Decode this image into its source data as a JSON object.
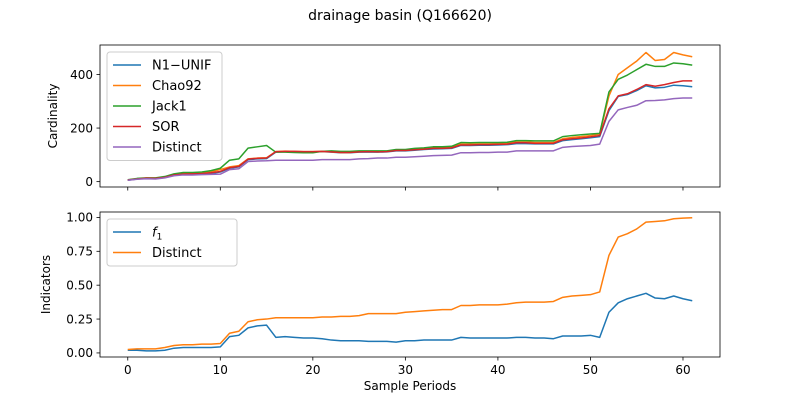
{
  "figure": {
    "title": "drainage basin (Q166620)"
  },
  "chart_data": [
    {
      "type": "line",
      "ylabel": "Cardinality",
      "xlabel": "",
      "xlim": [
        -3,
        64
      ],
      "ylim": [
        -20,
        510
      ],
      "xticks": [
        0,
        10,
        20,
        30,
        40,
        50,
        60
      ],
      "yticks": [
        0,
        200,
        400
      ],
      "show_xtick_labels": false,
      "grid": false,
      "legend_position": "upper-left",
      "x": [
        0,
        1,
        2,
        3,
        4,
        5,
        6,
        7,
        8,
        9,
        10,
        11,
        12,
        13,
        14,
        15,
        16,
        17,
        18,
        19,
        20,
        21,
        22,
        23,
        24,
        25,
        26,
        27,
        28,
        29,
        30,
        31,
        32,
        33,
        34,
        35,
        36,
        37,
        38,
        39,
        40,
        41,
        42,
        43,
        44,
        45,
        46,
        47,
        48,
        49,
        50,
        51,
        52,
        53,
        54,
        55,
        56,
        57,
        58,
        59,
        60,
        61
      ],
      "series": [
        {
          "name": "N1−UNIF",
          "color": "#1f77b4",
          "values": [
            5,
            10,
            12,
            11,
            15,
            24,
            27,
            28,
            29,
            31,
            36,
            50,
            55,
            82,
            85,
            86,
            110,
            112,
            112,
            111,
            111,
            112,
            110,
            108,
            108,
            110,
            110,
            110,
            111,
            115,
            115,
            117,
            120,
            122,
            123,
            124,
            135,
            135,
            136,
            136,
            137,
            138,
            142,
            142,
            141,
            141,
            141,
            153,
            157,
            160,
            164,
            168,
            265,
            318,
            325,
            340,
            358,
            350,
            352,
            360,
            358,
            354
          ]
        },
        {
          "name": "Chao92",
          "color": "#ff7f0e",
          "values": [
            6,
            11,
            13,
            13,
            17,
            27,
            31,
            32,
            33,
            37,
            45,
            55,
            60,
            85,
            88,
            89,
            112,
            114,
            113,
            112,
            112,
            113,
            111,
            109,
            109,
            112,
            113,
            112,
            114,
            118,
            118,
            120,
            123,
            126,
            127,
            129,
            140,
            140,
            141,
            141,
            142,
            143,
            148,
            148,
            146,
            146,
            146,
            160,
            165,
            168,
            172,
            178,
            320,
            400,
            425,
            450,
            482,
            452,
            456,
            482,
            473,
            466
          ]
        },
        {
          "name": "Jack1",
          "color": "#2ca02c",
          "values": [
            7,
            12,
            14,
            14,
            19,
            29,
            34,
            34,
            36,
            41,
            50,
            80,
            85,
            125,
            130,
            135,
            110,
            110,
            109,
            108,
            108,
            113,
            115,
            113,
            113,
            115,
            115,
            115,
            115,
            120,
            120,
            124,
            126,
            130,
            130,
            132,
            146,
            145,
            146,
            146,
            146,
            147,
            153,
            153,
            152,
            152,
            152,
            168,
            172,
            175,
            178,
            180,
            335,
            382,
            398,
            418,
            438,
            430,
            430,
            443,
            440,
            435
          ]
        },
        {
          "name": "SOR",
          "color": "#d62728",
          "values": [
            6,
            10,
            13,
            12,
            16,
            25,
            28,
            29,
            30,
            33,
            38,
            52,
            57,
            84,
            87,
            88,
            112,
            113,
            113,
            112,
            112,
            113,
            111,
            109,
            109,
            111,
            112,
            111,
            112,
            116,
            116,
            119,
            121,
            124,
            124,
            126,
            137,
            137,
            138,
            138,
            139,
            140,
            145,
            145,
            143,
            143,
            143,
            156,
            160,
            163,
            167,
            172,
            272,
            320,
            328,
            344,
            362,
            356,
            362,
            370,
            376,
            376
          ]
        },
        {
          "name": "Distinct",
          "color": "#9467bd",
          "values": [
            5,
            9,
            11,
            10,
            14,
            22,
            25,
            25,
            26,
            27,
            28,
            45,
            48,
            75,
            77,
            78,
            80,
            80,
            80,
            80,
            80,
            82,
            82,
            82,
            82,
            85,
            86,
            88,
            88,
            91,
            91,
            93,
            95,
            97,
            98,
            99,
            108,
            108,
            109,
            109,
            110,
            110,
            115,
            115,
            115,
            115,
            115,
            128,
            131,
            133,
            135,
            140,
            225,
            268,
            277,
            285,
            302,
            303,
            305,
            310,
            312,
            312
          ]
        }
      ]
    },
    {
      "type": "line",
      "ylabel": "Indicators",
      "xlabel": "Sample Periods",
      "xlim": [
        -3,
        64
      ],
      "ylim": [
        -0.03,
        1.04
      ],
      "xticks": [
        0,
        10,
        20,
        30,
        40,
        50,
        60
      ],
      "yticks": [
        0.0,
        0.25,
        0.5,
        0.75,
        1.0
      ],
      "ytick_labels": [
        "0.00",
        "0.25",
        "0.50",
        "0.75",
        "1.00"
      ],
      "show_xtick_labels": true,
      "grid": false,
      "legend_position": "upper-left",
      "x": [
        0,
        1,
        2,
        3,
        4,
        5,
        6,
        7,
        8,
        9,
        10,
        11,
        12,
        13,
        14,
        15,
        16,
        17,
        18,
        19,
        20,
        21,
        22,
        23,
        24,
        25,
        26,
        27,
        28,
        29,
        30,
        31,
        32,
        33,
        34,
        35,
        36,
        37,
        38,
        39,
        40,
        41,
        42,
        43,
        44,
        45,
        46,
        47,
        48,
        49,
        50,
        51,
        52,
        53,
        54,
        55,
        56,
        57,
        58,
        59,
        60,
        61
      ],
      "series": [
        {
          "name": "f1",
          "color": "#1f77b4",
          "values": [
            0.02,
            0.02,
            0.015,
            0.015,
            0.02,
            0.035,
            0.04,
            0.04,
            0.04,
            0.04,
            0.045,
            0.12,
            0.13,
            0.185,
            0.2,
            0.205,
            0.115,
            0.12,
            0.115,
            0.11,
            0.11,
            0.105,
            0.095,
            0.09,
            0.09,
            0.09,
            0.085,
            0.085,
            0.085,
            0.08,
            0.09,
            0.09,
            0.095,
            0.095,
            0.095,
            0.095,
            0.115,
            0.11,
            0.11,
            0.11,
            0.11,
            0.11,
            0.115,
            0.115,
            0.11,
            0.11,
            0.105,
            0.125,
            0.125,
            0.125,
            0.13,
            0.115,
            0.3,
            0.37,
            0.4,
            0.42,
            0.44,
            0.405,
            0.4,
            0.42,
            0.4,
            0.385
          ]
        },
        {
          "name": "Distinct",
          "color": "#ff7f0e",
          "values": [
            0.025,
            0.03,
            0.03,
            0.03,
            0.04,
            0.055,
            0.06,
            0.06,
            0.065,
            0.065,
            0.07,
            0.145,
            0.16,
            0.23,
            0.245,
            0.25,
            0.26,
            0.26,
            0.26,
            0.26,
            0.26,
            0.265,
            0.265,
            0.27,
            0.27,
            0.275,
            0.29,
            0.29,
            0.29,
            0.29,
            0.3,
            0.305,
            0.31,
            0.315,
            0.32,
            0.32,
            0.35,
            0.35,
            0.355,
            0.355,
            0.355,
            0.36,
            0.37,
            0.375,
            0.375,
            0.375,
            0.38,
            0.41,
            0.42,
            0.425,
            0.43,
            0.45,
            0.72,
            0.855,
            0.88,
            0.915,
            0.965,
            0.97,
            0.975,
            0.99,
            0.995,
            0.998
          ]
        }
      ]
    }
  ]
}
